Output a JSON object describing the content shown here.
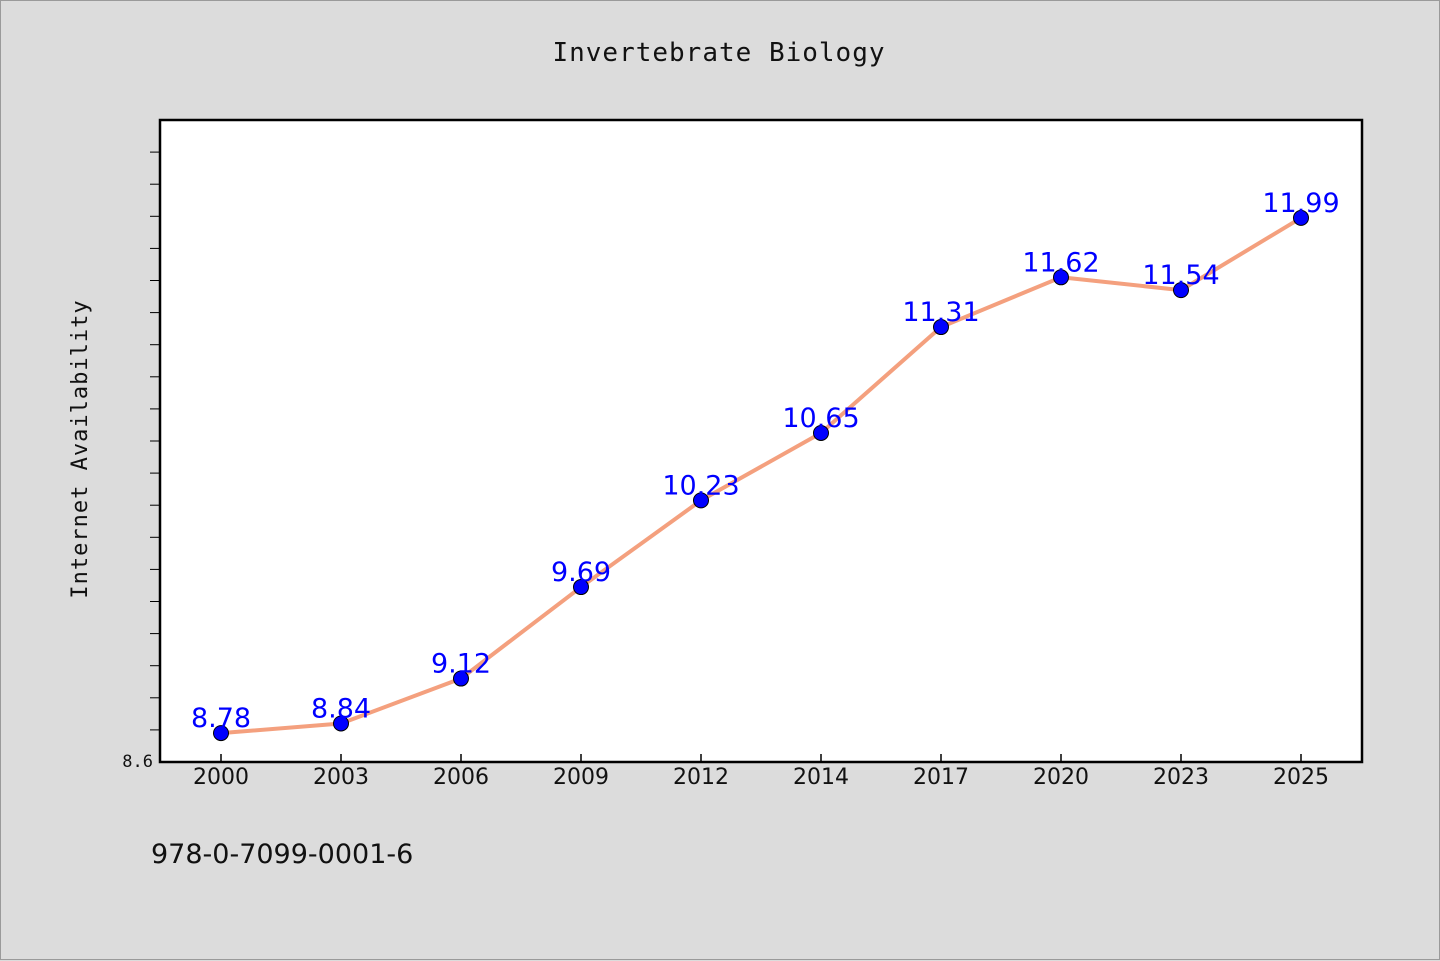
{
  "chart_data": {
    "type": "line",
    "title": "Invertebrate Biology",
    "ylabel": "Internet Availability",
    "xlabel": "",
    "categories": [
      "2000",
      "2003",
      "2006",
      "2009",
      "2012",
      "2014",
      "2017",
      "2020",
      "2023",
      "2025"
    ],
    "series": [
      {
        "values": [
          8.78,
          8.84,
          9.12,
          9.69,
          10.23,
          10.65,
          11.31,
          11.62,
          11.54,
          11.99
        ]
      }
    ],
    "data_labels": [
      "8.78",
      "8.84",
      "9.12",
      "9.69",
      "10.23",
      "10.65",
      "11.31",
      "11.62",
      "11.54",
      "11.99"
    ],
    "y_axis_min_label": "8.6",
    "ylim": [
      8.6,
      12.6
    ],
    "grid": false,
    "legend": "none",
    "colors": {
      "line": "#f4a07e",
      "marker": "#0000ff",
      "data_label": "#0000ff",
      "plot_background": "#ffffff",
      "figure_background": "#dcdcdc"
    }
  },
  "footer": {
    "isbn": "978-0-7099-0001-6"
  }
}
